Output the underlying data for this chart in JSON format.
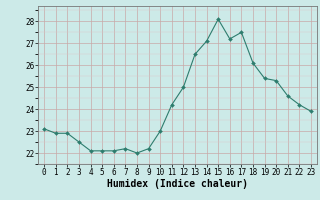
{
  "x": [
    0,
    1,
    2,
    3,
    4,
    5,
    6,
    7,
    8,
    9,
    10,
    11,
    12,
    13,
    14,
    15,
    16,
    17,
    18,
    19,
    20,
    21,
    22,
    23
  ],
  "y": [
    23.1,
    22.9,
    22.9,
    22.5,
    22.1,
    22.1,
    22.1,
    22.2,
    22.0,
    22.2,
    23.0,
    24.2,
    25.0,
    26.5,
    27.1,
    28.1,
    27.2,
    27.5,
    26.1,
    25.4,
    25.3,
    24.6,
    24.2,
    23.9
  ],
  "line_color": "#2e7d6e",
  "marker": "D",
  "marker_size": 2,
  "bg_color": "#cceae8",
  "grid_color_major": "#c8a8a8",
  "grid_color_minor": "#dcc8c8",
  "xlabel": "Humidex (Indice chaleur)",
  "xlabel_fontsize": 7,
  "ylim": [
    21.5,
    28.7
  ],
  "yticks": [
    22,
    23,
    24,
    25,
    26,
    27,
    28
  ],
  "xticks": [
    0,
    1,
    2,
    3,
    4,
    5,
    6,
    7,
    8,
    9,
    10,
    11,
    12,
    13,
    14,
    15,
    16,
    17,
    18,
    19,
    20,
    21,
    22,
    23
  ],
  "tick_fontsize": 5.5,
  "xlim": [
    -0.5,
    23.5
  ]
}
